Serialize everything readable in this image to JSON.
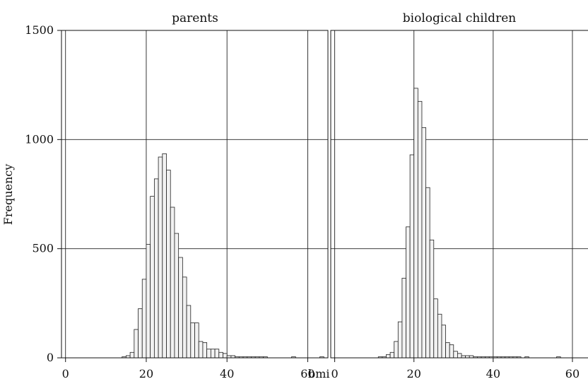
{
  "chart_data": {
    "type": "bar",
    "ylabel": "Frequency",
    "xlabel": "bmi",
    "ylim": [
      0,
      1500
    ],
    "yticks": [
      0,
      500,
      1000,
      1500
    ],
    "xticks": [
      0,
      20,
      40,
      60
    ],
    "grid": true,
    "bin_width": 1,
    "bar_fill": "#f2f2f2",
    "bar_stroke": "#222222",
    "panels": [
      {
        "title": "parents",
        "xlim": [
          -1,
          65
        ],
        "bin_starts": [
          14,
          15,
          16,
          17,
          18,
          19,
          20,
          21,
          22,
          23,
          24,
          25,
          26,
          27,
          28,
          29,
          30,
          31,
          32,
          33,
          34,
          35,
          36,
          37,
          38,
          39,
          40,
          41,
          42,
          43,
          44,
          45,
          46,
          47,
          48,
          49,
          56,
          63
        ],
        "values": [
          5,
          10,
          25,
          130,
          225,
          360,
          520,
          740,
          820,
          920,
          935,
          860,
          690,
          570,
          460,
          370,
          240,
          160,
          160,
          75,
          70,
          40,
          40,
          40,
          25,
          20,
          10,
          10,
          5,
          5,
          5,
          5,
          5,
          5,
          5,
          5,
          5,
          5
        ]
      },
      {
        "title": "biological children",
        "xlim": [
          -1,
          65
        ],
        "bin_starts": [
          11,
          12,
          13,
          14,
          15,
          16,
          17,
          18,
          19,
          20,
          21,
          22,
          23,
          24,
          25,
          26,
          27,
          28,
          29,
          30,
          31,
          32,
          33,
          34,
          35,
          36,
          37,
          38,
          39,
          40,
          41,
          42,
          43,
          44,
          45,
          46,
          48,
          56
        ],
        "values": [
          5,
          5,
          15,
          25,
          75,
          165,
          365,
          600,
          930,
          1235,
          1175,
          1055,
          780,
          540,
          270,
          200,
          150,
          70,
          60,
          30,
          20,
          10,
          10,
          10,
          5,
          5,
          5,
          5,
          5,
          5,
          5,
          5,
          5,
          5,
          5,
          5,
          5,
          5
        ]
      }
    ]
  }
}
